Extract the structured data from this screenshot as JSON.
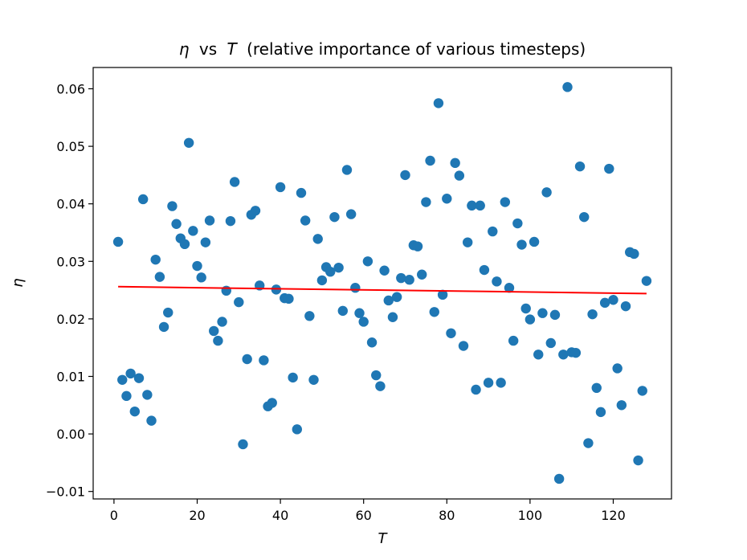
{
  "colors": {
    "points": "#1f77b4",
    "trend": "#ff0000",
    "axes": "#000000",
    "background": "#ffffff"
  },
  "chart_data": {
    "type": "scatter",
    "title_math": "η",
    "title_vs": "vs",
    "title_math2": "T",
    "title_rest": "(relative importance of various timesteps)",
    "xlabel": "T",
    "ylabel": "η",
    "xlim": [
      -5,
      134
    ],
    "ylim": [
      -0.0113,
      0.0637
    ],
    "x_ticks": [
      0,
      20,
      40,
      60,
      80,
      100,
      120
    ],
    "x_tick_labels": [
      "0",
      "20",
      "40",
      "60",
      "80",
      "100",
      "120"
    ],
    "y_ticks": [
      -0.01,
      0.0,
      0.01,
      0.02,
      0.03,
      0.04,
      0.05,
      0.06
    ],
    "y_tick_labels": [
      "−0.01",
      "0.00",
      "0.01",
      "0.02",
      "0.03",
      "0.04",
      "0.05",
      "0.06"
    ],
    "grid": false,
    "series": [
      {
        "marker": "circle",
        "x": [
          1,
          2,
          3,
          4,
          5,
          6,
          7,
          8,
          9,
          10,
          11,
          12,
          13,
          14,
          15,
          16,
          17,
          18,
          19,
          20,
          21,
          22,
          23,
          24,
          25,
          26,
          27,
          28,
          29,
          30,
          31,
          32,
          33,
          34,
          35,
          36,
          37,
          38,
          39,
          40,
          41,
          42,
          43,
          44,
          45,
          46,
          47,
          48,
          49,
          50,
          51,
          52,
          53,
          54,
          55,
          56,
          57,
          58,
          59,
          60,
          61,
          62,
          63,
          64,
          65,
          66,
          67,
          68,
          69,
          70,
          71,
          72,
          73,
          74,
          75,
          76,
          77,
          78,
          79,
          80,
          81,
          82,
          83,
          84,
          85,
          86,
          87,
          88,
          89,
          90,
          91,
          92,
          93,
          94,
          95,
          96,
          97,
          98,
          99,
          100,
          101,
          102,
          103,
          104,
          105,
          106,
          107,
          108,
          109,
          110,
          111,
          112,
          113,
          114,
          115,
          116,
          117,
          118,
          119,
          120,
          121,
          122,
          123,
          124,
          125,
          126,
          127,
          128
        ],
        "y": [
          0.0334,
          0.0094,
          0.0066,
          0.0105,
          0.0039,
          0.0097,
          0.0408,
          0.0068,
          0.0023,
          0.0303,
          0.0273,
          0.0186,
          0.0211,
          0.0396,
          0.0365,
          0.034,
          0.033,
          0.0506,
          0.0353,
          0.0292,
          0.0272,
          0.0333,
          0.0371,
          0.0179,
          0.0162,
          0.0195,
          0.0249,
          0.037,
          0.0438,
          0.0229,
          -0.0018,
          0.013,
          0.0381,
          0.0388,
          0.0258,
          0.0128,
          0.0048,
          0.0054,
          0.0251,
          0.0429,
          0.0236,
          0.0235,
          0.0098,
          0.0008,
          0.0419,
          0.0371,
          0.0205,
          0.0094,
          0.0339,
          0.0267,
          0.029,
          0.0282,
          0.0377,
          0.0289,
          0.0214,
          0.0459,
          0.0382,
          0.0254,
          0.021,
          0.0195,
          0.03,
          0.0159,
          0.0102,
          0.0083,
          0.0284,
          0.0232,
          0.0203,
          0.0238,
          0.0271,
          0.045,
          0.0268,
          0.0328,
          0.0326,
          0.0277,
          0.0403,
          0.0475,
          0.0212,
          0.0575,
          0.0242,
          0.0409,
          0.0175,
          0.0471,
          0.0449,
          0.0153,
          0.0333,
          0.0397,
          0.0077,
          0.0397,
          0.0285,
          0.0089,
          0.0352,
          0.0265,
          0.0089,
          0.0403,
          0.0254,
          0.0162,
          0.0366,
          0.0329,
          0.0218,
          0.0199,
          0.0334,
          0.0138,
          0.021,
          0.042,
          0.0158,
          0.0207,
          -0.0078,
          0.0138,
          0.0603,
          0.0142,
          0.0141,
          0.0465,
          0.0377,
          -0.0016,
          0.0208,
          0.008,
          0.0038,
          0.0228,
          0.0461,
          0.0233,
          0.0114,
          0.005,
          0.0222,
          0.0316,
          0.0313,
          -0.0046,
          0.0075,
          0.0266
        ]
      },
      {
        "type": "line",
        "x": [
          1,
          128
        ],
        "y": [
          0.0256,
          0.0244
        ]
      }
    ]
  }
}
